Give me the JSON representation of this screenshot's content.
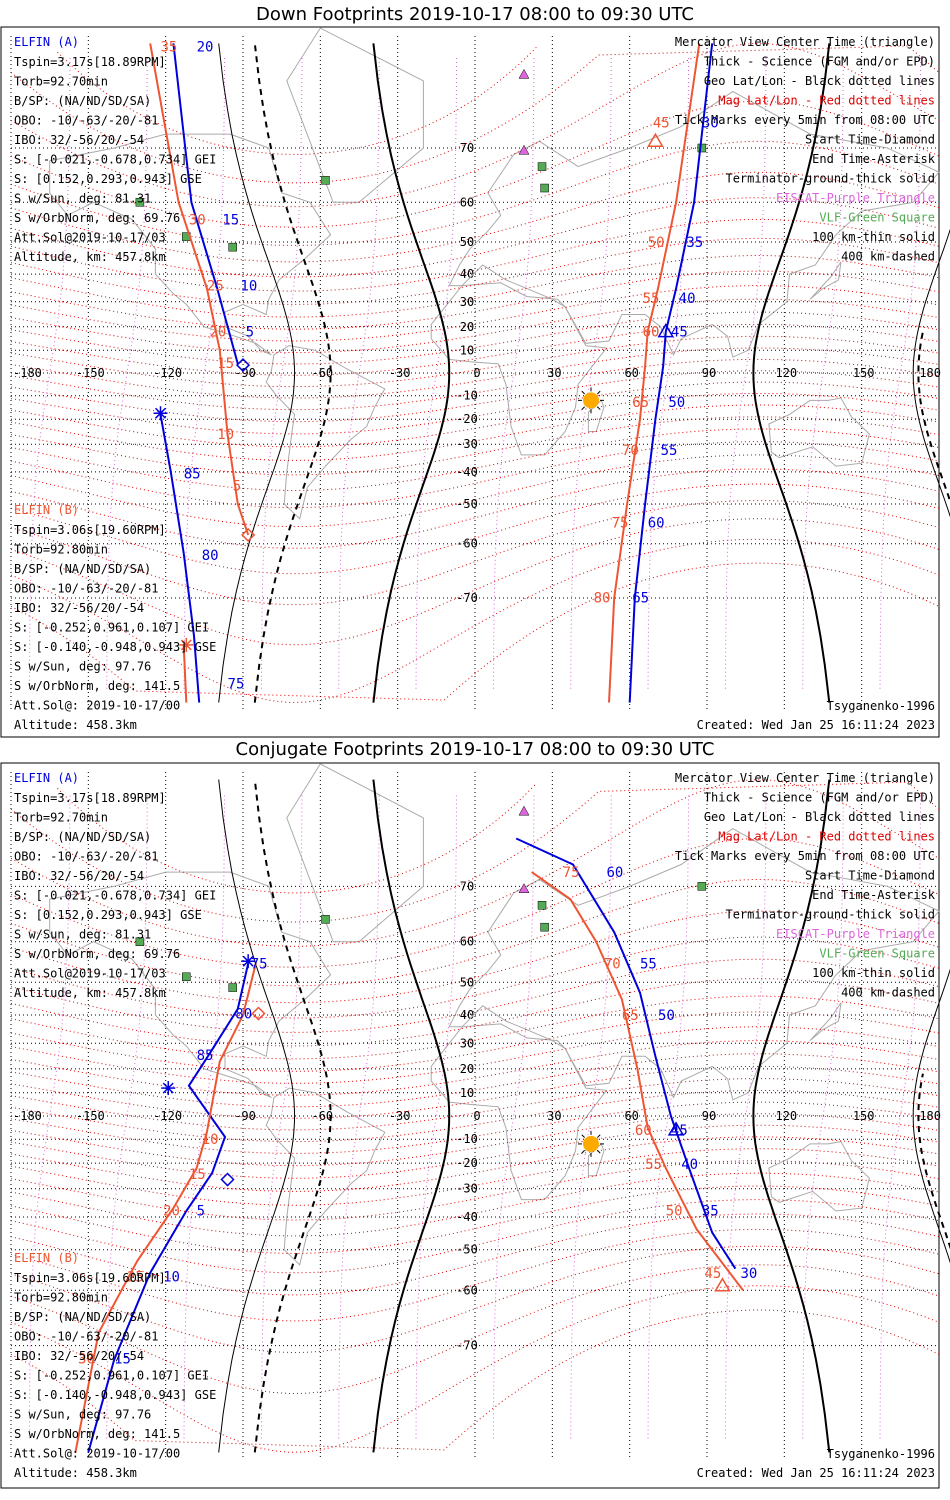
{
  "colors": {
    "blue": "#0000dd",
    "orange": "#ee5533",
    "red": "#dd0000",
    "magenta": "#dd66dd",
    "green": "#55aa55",
    "sun": "#ffaa00",
    "coast": "#aaaaaa",
    "black": "#000000"
  },
  "panels": [
    {
      "title": "Down Footprints 2019-10-17 08:00 to 09:30 UTC",
      "elfin_a": {
        "header": "ELFIN (A)",
        "lines": [
          "Tspin=3.17s[18.89RPM]",
          "Torb=92.70min",
          "B/SP: (NA/ND/SD/SA)",
          "OBO: -10/-63/-20/-81",
          "IBO: 32/-56/20/-54",
          "S: [-0.021,-0.678,0.734] GEI",
          "S: [0.152,0.293,0.943] GSE",
          "S w/Sun, deg: 81.31",
          "S w/OrbNorm, deg: 69.76",
          "Att.Sol@2019-10-17/03",
          "Altitude, km: 457.8km"
        ]
      },
      "elfin_b": {
        "header": "ELFIN (B)",
        "lines": [
          "Tspin=3.06s[19.60RPM]",
          "Torb=92.80min",
          "B/SP: (NA/ND/SD/SA)",
          "OBO: -10/-63/-20/-81",
          "IBO: 32/-56/20/-54",
          "S: [-0.252,0.961,0.107] GEI",
          "S: [-0.140,-0.948,0.943] GSE",
          "S w/Sun, deg: 97.76",
          "S w/OrbNorm, deg: 141.5",
          "Att.Sol@: 2019-10-17/00",
          "Altitude: 458.3km"
        ]
      },
      "legend": [
        {
          "text": "Mercator View Center Time (triangle)",
          "color": "black"
        },
        {
          "text": "Thick - Science (FGM and/or EPD)",
          "color": "black"
        },
        {
          "text": "Geo Lat/Lon - Black dotted lines",
          "color": "black"
        },
        {
          "text": "Mag Lat/Lon - Red dotted lines",
          "color": "red"
        },
        {
          "text": "Tick Marks every 5min from 08:00 UTC",
          "color": "black"
        },
        {
          "text": "Start Time-Diamond",
          "color": "black"
        },
        {
          "text": "End Time-Asterisk",
          "color": "black"
        },
        {
          "text": "Terminator-ground-thick solid",
          "color": "black"
        },
        {
          "text": "EISCAT-Purple Triangle",
          "color": "magenta"
        },
        {
          "text": "VLF-Green Square",
          "color": "green"
        },
        {
          "text": "100 km-thin solid",
          "color": "black"
        },
        {
          "text": "400 km-dashed",
          "color": "black"
        }
      ],
      "model": "Tsyganenko-1996",
      "created": "Created: Wed Jan 25 16:11:24 2023",
      "lon_ticks": [
        "-180",
        "-150",
        "-120",
        "-90",
        "-60",
        "-30",
        "0",
        "30",
        "60",
        "90",
        "120",
        "150",
        "180"
      ],
      "lat_ticks": [
        "70",
        "60",
        "50",
        "40",
        "30",
        "20",
        "10",
        "-10",
        "-20",
        "-30",
        "-40",
        "-50",
        "-60",
        "-70"
      ],
      "labels": [
        {
          "t": "35",
          "lon": -122,
          "lat": 80.8,
          "c": "orange"
        },
        {
          "t": "20",
          "lon": -108,
          "lat": 80.8,
          "c": "blue"
        },
        {
          "t": "30",
          "lon": -111,
          "lat": 56.0,
          "c": "orange"
        },
        {
          "t": "15",
          "lon": -98,
          "lat": 56.0,
          "c": "blue"
        },
        {
          "t": "25",
          "lon": -104,
          "lat": 36.1,
          "c": "orange"
        },
        {
          "t": "10",
          "lon": -91,
          "lat": 36.1,
          "c": "blue"
        },
        {
          "t": "20",
          "lon": -103,
          "lat": 18.0,
          "c": "orange"
        },
        {
          "t": "5",
          "lon": -89,
          "lat": 18.0,
          "c": "blue"
        },
        {
          "t": "15",
          "lon": -100,
          "lat": 4.5,
          "c": "orange"
        },
        {
          "t": "10",
          "lon": -100,
          "lat": -26.0,
          "c": "orange"
        },
        {
          "t": "85",
          "lon": -113,
          "lat": -40.6,
          "c": "blue"
        },
        {
          "t": "5",
          "lon": -94,
          "lat": -44.5,
          "c": "orange"
        },
        {
          "t": "80",
          "lon": -106,
          "lat": -62.4,
          "c": "blue"
        },
        {
          "t": "75",
          "lon": -96,
          "lat": -79.6,
          "c": "blue"
        },
        {
          "t": "45",
          "lon": 69,
          "lat": 73.5,
          "c": "orange"
        },
        {
          "t": "30",
          "lon": 88,
          "lat": 73.5,
          "c": "blue"
        },
        {
          "t": "50",
          "lon": 67,
          "lat": 50.0,
          "c": "orange"
        },
        {
          "t": "35",
          "lon": 82,
          "lat": 50.0,
          "c": "blue"
        },
        {
          "t": "55",
          "lon": 65,
          "lat": 31.5,
          "c": "orange"
        },
        {
          "t": "40",
          "lon": 79,
          "lat": 31.5,
          "c": "blue"
        },
        {
          "t": "60",
          "lon": 65,
          "lat": 18.0,
          "c": "orange"
        },
        {
          "t": "45",
          "lon": 76,
          "lat": 18.0,
          "c": "blue"
        },
        {
          "t": "65",
          "lon": 61,
          "lat": -12.7,
          "c": "orange"
        },
        {
          "t": "50",
          "lon": 75,
          "lat": -12.7,
          "c": "blue"
        },
        {
          "t": "70",
          "lon": 57,
          "lat": -32.1,
          "c": "orange"
        },
        {
          "t": "55",
          "lon": 72,
          "lat": -32.1,
          "c": "blue"
        },
        {
          "t": "75",
          "lon": 53,
          "lat": -55.0,
          "c": "orange"
        },
        {
          "t": "60",
          "lon": 67,
          "lat": -55.0,
          "c": "blue"
        },
        {
          "t": "80",
          "lon": 46,
          "lat": -69.9,
          "c": "orange"
        },
        {
          "t": "65",
          "lon": 61,
          "lat": -69.9,
          "c": "blue"
        }
      ]
    },
    {
      "title": "Conjugate Footprints 2019-10-17 08:00 to 09:30 UTC",
      "elfin_a": {
        "header": "ELFIN (A)",
        "lines": [
          "Tspin=3.17s[18.89RPM]",
          "Torb=92.70min",
          "B/SP: (NA/ND/SD/SA)",
          "OBO: -10/-63/-20/-81",
          "IBO: 32/-56/20/-54",
          "S: [-0.021,-0.678,0.734] GEI",
          "S: [0.152,0.293,0.943] GSE",
          "S w/Sun, deg: 81.31",
          "S w/OrbNorm, deg: 69.76",
          "Att.Sol@2019-10-17/03",
          "Altitude, km: 457.8km"
        ]
      },
      "elfin_b": {
        "header": "ELFIN (B)",
        "lines": [
          "Tspin=3.06s[19.60RPM]",
          "Torb=92.80min",
          "B/SP: (NA/ND/SD/SA)",
          "OBO: -10/-63/-20/-81",
          "IBO: 32/-56/20/-54",
          "S: [-0.252,0.961,0.107] GEI",
          "S: [-0.140,-0.948,0.943] GSE",
          "S w/Sun, deg: 97.76",
          "S w/OrbNorm, deg: 141.5",
          "Att.Sol@: 2019-10-17/00",
          "Altitude: 458.3km"
        ]
      },
      "legend": [
        {
          "text": "Mercator View Center Time (triangle)",
          "color": "black"
        },
        {
          "text": "Thick - Science (FGM and/or EPD)",
          "color": "black"
        },
        {
          "text": "Geo Lat/Lon - Black dotted lines",
          "color": "black"
        },
        {
          "text": "Mag Lat/Lon - Red dotted lines",
          "color": "red"
        },
        {
          "text": "Tick Marks every 5min from 08:00 UTC",
          "color": "black"
        },
        {
          "text": "Start Time-Diamond",
          "color": "black"
        },
        {
          "text": "End Time-Asterisk",
          "color": "black"
        },
        {
          "text": "Terminator-ground-thick solid",
          "color": "black"
        },
        {
          "text": "EISCAT-Purple Triangle",
          "color": "magenta"
        },
        {
          "text": "VLF-Green Square",
          "color": "green"
        },
        {
          "text": "100 km-thin solid",
          "color": "black"
        },
        {
          "text": "400 km-dashed",
          "color": "black"
        }
      ],
      "model": "Tsyganenko-1996",
      "created": "Created: Wed Jan 25 16:11:24 2023",
      "lon_ticks": [
        "-180",
        "-150",
        "-120",
        "-90",
        "-60",
        "-30",
        "0",
        "30",
        "60",
        "90",
        "120",
        "150",
        "180"
      ],
      "lat_ticks": [
        "70",
        "60",
        "50",
        "40",
        "30",
        "20",
        "10",
        "-10",
        "-20",
        "-30",
        "-40",
        "-50",
        "-60",
        "-70"
      ],
      "labels": [
        {
          "t": "75",
          "lon": -87,
          "lat": 55.0,
          "c": "blue"
        },
        {
          "t": "80",
          "lon": -93,
          "lat": 40.5,
          "c": "blue"
        },
        {
          "t": "85",
          "lon": -108,
          "lat": 25.5,
          "c": "blue"
        },
        {
          "t": "10",
          "lon": -106,
          "lat": -10.0,
          "c": "orange"
        },
        {
          "t": "15",
          "lon": -111,
          "lat": -24.4,
          "c": "orange"
        },
        {
          "t": "20",
          "lon": -121,
          "lat": -37.8,
          "c": "orange"
        },
        {
          "t": "5",
          "lon": -108,
          "lat": -37.8,
          "c": "blue"
        },
        {
          "t": "25",
          "lon": -135,
          "lat": -56.9,
          "c": "orange"
        },
        {
          "t": "10",
          "lon": -121,
          "lat": -56.9,
          "c": "blue"
        },
        {
          "t": "30",
          "lon": -154,
          "lat": -71.8,
          "c": "orange"
        },
        {
          "t": "15",
          "lon": -140,
          "lat": -71.8,
          "c": "blue"
        },
        {
          "t": "60",
          "lon": 51,
          "lat": 72.0,
          "c": "blue"
        },
        {
          "t": "75",
          "lon": 34,
          "lat": 72.0,
          "c": "orange"
        },
        {
          "t": "70",
          "lon": 50,
          "lat": 55.0,
          "c": "orange"
        },
        {
          "t": "55",
          "lon": 64,
          "lat": 55.0,
          "c": "blue"
        },
        {
          "t": "65",
          "lon": 57,
          "lat": 40.0,
          "c": "orange"
        },
        {
          "t": "50",
          "lon": 71,
          "lat": 40.0,
          "c": "blue"
        },
        {
          "t": "60",
          "lon": 62,
          "lat": -6.0,
          "c": "orange"
        },
        {
          "t": "45",
          "lon": 76,
          "lat": -6.0,
          "c": "blue"
        },
        {
          "t": "55",
          "lon": 66,
          "lat": -20.3,
          "c": "orange"
        },
        {
          "t": "40",
          "lon": 80,
          "lat": -20.3,
          "c": "blue"
        },
        {
          "t": "50",
          "lon": 74,
          "lat": -37.8,
          "c": "orange"
        },
        {
          "t": "35",
          "lon": 88,
          "lat": -37.8,
          "c": "blue"
        },
        {
          "t": "45",
          "lon": 89,
          "lat": -56.0,
          "c": "orange"
        },
        {
          "t": "30",
          "lon": 103,
          "lat": -56.0,
          "c": "blue"
        }
      ]
    }
  ]
}
